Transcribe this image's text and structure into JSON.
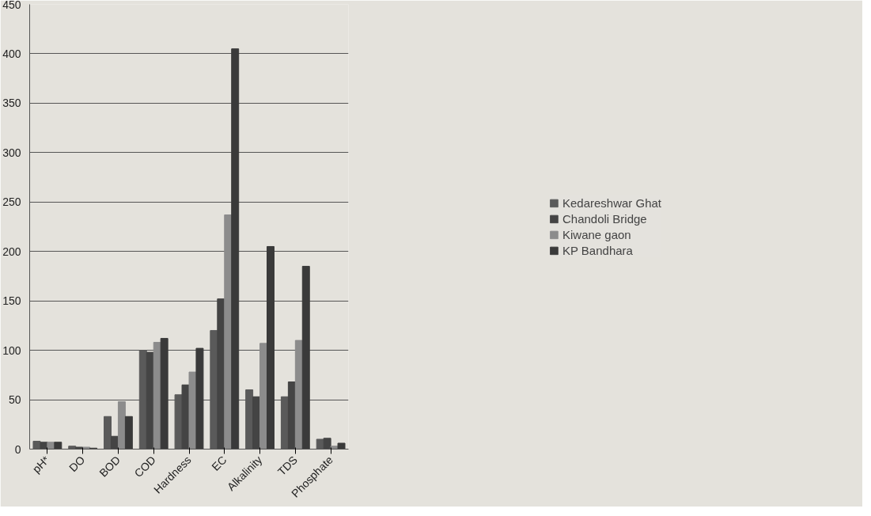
{
  "chart_data": {
    "type": "bar",
    "categories": [
      "pH*",
      "DO",
      "BOD",
      "COD",
      "Hardness",
      "EC",
      "Alkalinity",
      "TDS",
      "Phosphate"
    ],
    "series": [
      {
        "name": "Kedareshwar Ghat",
        "color": "#5a5a5a",
        "values": [
          8,
          3,
          33,
          100,
          55,
          120,
          60,
          53,
          10
        ]
      },
      {
        "name": "Chandoli Bridge",
        "color": "#444444",
        "values": [
          7,
          2,
          13,
          98,
          65,
          152,
          53,
          68,
          11
        ]
      },
      {
        "name": "Kiwane gaon",
        "color": "#8c8c8c",
        "values": [
          7,
          2,
          48,
          108,
          78,
          237,
          107,
          110,
          3
        ]
      },
      {
        "name": "KP Bandhara",
        "color": "#3a3a3a",
        "values": [
          7,
          1,
          33,
          112,
          102,
          405,
          205,
          185,
          6
        ]
      }
    ],
    "ylim": [
      0,
      450
    ],
    "yticks": [
      0,
      50,
      100,
      150,
      200,
      250,
      300,
      350,
      400,
      450
    ],
    "grid": "y",
    "legend": "right"
  }
}
